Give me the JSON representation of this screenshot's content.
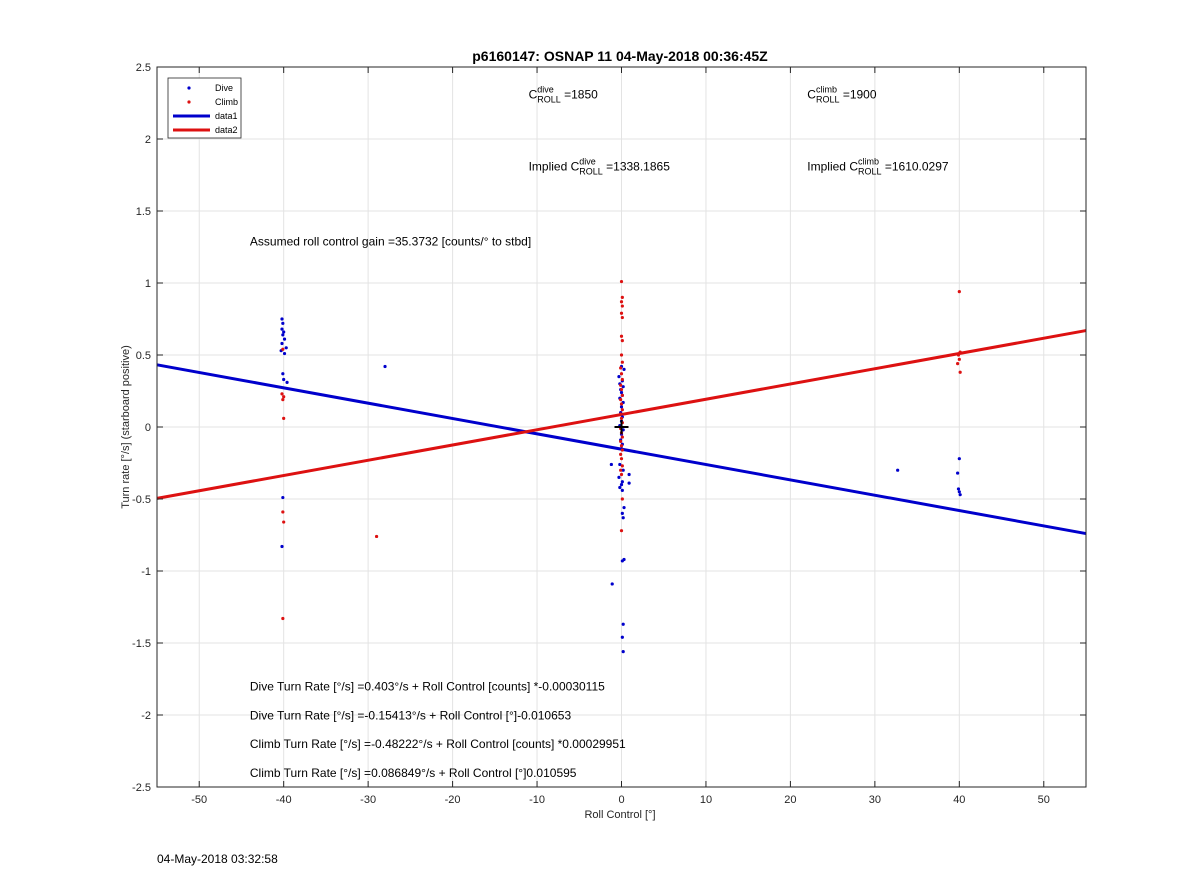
{
  "chart_data": {
    "type": "scatter",
    "title": "p6160147: OSNAP 11 04-May-2018 00:36:45Z",
    "xlabel": "Roll Control [°]",
    "ylabel": "Turn rate [°/s] (starboard positive)",
    "xlim": [
      -55,
      55
    ],
    "ylim": [
      -2.5,
      2.5
    ],
    "xticks": [
      "-50",
      "-40",
      "-30",
      "-20",
      "-10",
      "0",
      "10",
      "20",
      "30",
      "40",
      "50"
    ],
    "yticks": [
      "-2.5",
      "-2",
      "-1.5",
      "-1",
      "-0.5",
      "0",
      "0.5",
      "1",
      "1.5",
      "2",
      "2.5"
    ],
    "grid": true,
    "legend": {
      "placement": "top-left",
      "entries": [
        {
          "label": "Dive",
          "kind": "marker",
          "color": "#0000cc"
        },
        {
          "label": "Climb",
          "kind": "marker",
          "color": "#dd1111"
        },
        {
          "label": "data1",
          "kind": "line",
          "color": "#0000cc"
        },
        {
          "label": "data2",
          "kind": "line",
          "color": "#dd1111"
        }
      ]
    },
    "series": [
      {
        "name": "Dive",
        "color": "#0000cc",
        "points": [
          [
            -40.2,
            0.75
          ],
          [
            -40.1,
            0.72
          ],
          [
            -40.2,
            0.68
          ],
          [
            -40.0,
            0.66
          ],
          [
            -40.1,
            0.64
          ],
          [
            -39.9,
            0.61
          ],
          [
            -40.2,
            0.58
          ],
          [
            -39.7,
            0.55
          ],
          [
            -40.3,
            0.53
          ],
          [
            -39.9,
            0.51
          ],
          [
            -40.1,
            0.37
          ],
          [
            -40.0,
            0.33
          ],
          [
            -39.6,
            0.31
          ],
          [
            -40.1,
            -0.49
          ],
          [
            -40.2,
            -0.83
          ],
          [
            -28.0,
            0.42
          ],
          [
            0.0,
            0.42
          ],
          [
            0.3,
            0.4
          ],
          [
            -0.3,
            0.35
          ],
          [
            0.1,
            0.32
          ],
          [
            -0.2,
            0.3
          ],
          [
            0.2,
            0.28
          ],
          [
            -0.1,
            0.26
          ],
          [
            0.0,
            0.24
          ],
          [
            0.1,
            0.22
          ],
          [
            -0.2,
            0.2
          ],
          [
            0.2,
            0.17
          ],
          [
            0.0,
            0.14
          ],
          [
            -0.1,
            0.1
          ],
          [
            0.1,
            0.07
          ],
          [
            0.0,
            0.04
          ],
          [
            -0.2,
            0.01
          ],
          [
            0.2,
            -0.02
          ],
          [
            0.0,
            -0.05
          ],
          [
            -0.1,
            -0.09
          ],
          [
            0.1,
            -0.12
          ],
          [
            0.0,
            -0.15
          ],
          [
            -0.2,
            -0.26
          ],
          [
            0.2,
            -0.3
          ],
          [
            -0.3,
            -0.35
          ],
          [
            0.1,
            -0.38
          ],
          [
            0.0,
            -0.4
          ],
          [
            -0.2,
            -0.42
          ],
          [
            0.1,
            -0.44
          ],
          [
            -1.2,
            -0.26
          ],
          [
            0.9,
            -0.33
          ],
          [
            0.9,
            -0.39
          ],
          [
            0.3,
            -0.56
          ],
          [
            0.1,
            -0.6
          ],
          [
            0.2,
            -0.63
          ],
          [
            0.3,
            -0.92
          ],
          [
            0.1,
            -0.93
          ],
          [
            -1.1,
            -1.09
          ],
          [
            0.2,
            -1.37
          ],
          [
            0.1,
            -1.46
          ],
          [
            0.2,
            -1.56
          ],
          [
            32.7,
            -0.3
          ],
          [
            40.0,
            -0.22
          ],
          [
            39.8,
            -0.32
          ],
          [
            39.9,
            -0.43
          ],
          [
            40.0,
            -0.45
          ],
          [
            40.1,
            -0.47
          ]
        ]
      },
      {
        "name": "Climb",
        "color": "#dd1111",
        "points": [
          [
            -40.1,
            0.54
          ],
          [
            -40.2,
            0.23
          ],
          [
            -40.0,
            0.21
          ],
          [
            -40.1,
            0.19
          ],
          [
            -40.0,
            0.06
          ],
          [
            -40.1,
            -0.59
          ],
          [
            -40.0,
            -0.66
          ],
          [
            -40.1,
            -1.33
          ],
          [
            -29.0,
            -0.76
          ],
          [
            0.0,
            1.01
          ],
          [
            0.1,
            0.9
          ],
          [
            0.0,
            0.87
          ],
          [
            0.1,
            0.84
          ],
          [
            0.0,
            0.79
          ],
          [
            0.1,
            0.76
          ],
          [
            0.0,
            0.63
          ],
          [
            0.1,
            0.6
          ],
          [
            0.0,
            0.5
          ],
          [
            0.1,
            0.45
          ],
          [
            -0.1,
            0.41
          ],
          [
            0.0,
            0.37
          ],
          [
            0.1,
            0.33
          ],
          [
            -0.1,
            0.29
          ],
          [
            0.0,
            0.26
          ],
          [
            0.1,
            0.22
          ],
          [
            -0.1,
            0.19
          ],
          [
            0.0,
            0.16
          ],
          [
            0.1,
            0.12
          ],
          [
            -0.1,
            0.09
          ],
          [
            0.0,
            0.06
          ],
          [
            0.1,
            0.03
          ],
          [
            -0.1,
            -0.01
          ],
          [
            0.0,
            -0.04
          ],
          [
            0.1,
            -0.07
          ],
          [
            -0.1,
            -0.1
          ],
          [
            0.0,
            -0.13
          ],
          [
            0.1,
            -0.16
          ],
          [
            -0.1,
            -0.19
          ],
          [
            0.0,
            -0.22
          ],
          [
            0.1,
            -0.27
          ],
          [
            -0.1,
            -0.3
          ],
          [
            0.0,
            -0.33
          ],
          [
            0.1,
            -0.5
          ],
          [
            0.0,
            -0.72
          ],
          [
            40.0,
            0.94
          ],
          [
            40.1,
            0.52
          ],
          [
            39.9,
            0.5
          ],
          [
            40.0,
            0.47
          ],
          [
            39.8,
            0.44
          ],
          [
            40.1,
            0.38
          ]
        ]
      }
    ],
    "fit_lines": [
      {
        "name": "data1",
        "color": "#0000cc",
        "intercept": -0.15413,
        "slope": -0.010653
      },
      {
        "name": "data2",
        "color": "#dd1111",
        "intercept": 0.086849,
        "slope": 0.010595
      }
    ],
    "center_marker": {
      "x": 0,
      "y": 0,
      "symbol": "+"
    },
    "annotations": [
      {
        "id": "c-dive",
        "parts": [
          {
            "t": "C"
          },
          {
            "t": "dive",
            "sup": true
          },
          {
            "t": "ROLL",
            "sub": true
          },
          {
            "t": " =1850"
          }
        ],
        "at": [
          -11,
          2.28
        ]
      },
      {
        "id": "c-climb",
        "parts": [
          {
            "t": "C"
          },
          {
            "t": "climb",
            "sup": true
          },
          {
            "t": "ROLL",
            "sub": true
          },
          {
            "t": " =1900"
          }
        ],
        "at": [
          22,
          2.28
        ]
      },
      {
        "id": "implied-dive",
        "parts": [
          {
            "t": "Implied C"
          },
          {
            "t": "dive",
            "sup": true
          },
          {
            "t": "ROLL",
            "sub": true
          },
          {
            "t": " =1338.1865"
          }
        ],
        "at": [
          -11,
          1.78
        ]
      },
      {
        "id": "implied-climb",
        "parts": [
          {
            "t": "Implied C"
          },
          {
            "t": "climb",
            "sup": true
          },
          {
            "t": "ROLL",
            "sub": true
          },
          {
            "t": " =1610.0297"
          }
        ],
        "at": [
          22,
          1.78
        ]
      },
      {
        "id": "gain",
        "parts": [
          {
            "t": "Assumed roll control gain =35.3732 [counts/° to stbd]"
          }
        ],
        "at": [
          -44,
          1.26
        ]
      },
      {
        "id": "eq1",
        "parts": [
          {
            "t": "Dive Turn Rate [°/s] =0.403°/s + Roll Control [counts] *-0.00030115"
          }
        ],
        "at": [
          -44,
          -1.83
        ]
      },
      {
        "id": "eq2",
        "parts": [
          {
            "t": "Dive Turn Rate [°/s] =-0.15413°/s + Roll Control [°]-0.010653"
          }
        ],
        "at": [
          -44,
          -2.03
        ]
      },
      {
        "id": "eq3",
        "parts": [
          {
            "t": "Climb Turn Rate [°/s] =-0.48222°/s + Roll Control [counts] *0.00029951"
          }
        ],
        "at": [
          -44,
          -2.23
        ]
      },
      {
        "id": "eq4",
        "parts": [
          {
            "t": "Climb Turn Rate [°/s] =0.086849°/s + Roll Control [°]0.010595"
          }
        ],
        "at": [
          -44,
          -2.43
        ]
      }
    ]
  },
  "footer": {
    "timestamp": "04-May-2018 03:32:58"
  }
}
